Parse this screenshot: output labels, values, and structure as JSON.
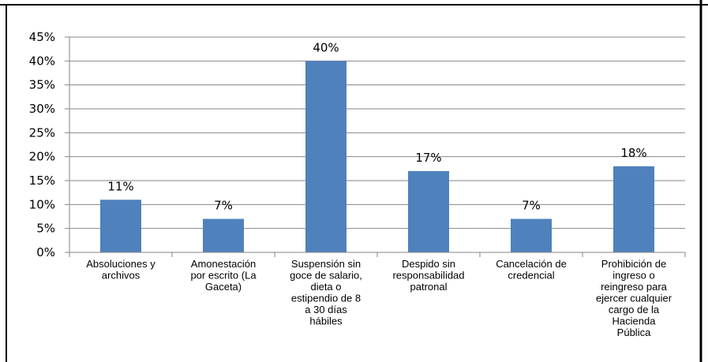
{
  "chart_data": {
    "type": "bar",
    "categories": [
      [
        "Absoluciones y",
        "archivos"
      ],
      [
        "Amonestación",
        "por escrito (La",
        "Gaceta)"
      ],
      [
        "Suspensión sin",
        "goce de salario,",
        "dieta o",
        "estipendio de 8",
        "a 30 días",
        "hábiles"
      ],
      [
        "Despido sin",
        "responsabilidad",
        "patronal"
      ],
      [
        "Cancelación de",
        "credencial"
      ],
      [
        "Prohibición de",
        "ingreso o",
        "reingreso para",
        "ejercer cualquier",
        "cargo de la",
        "Hacienda",
        "Pública"
      ]
    ],
    "values": [
      11,
      7,
      40,
      17,
      7,
      18
    ],
    "data_labels": [
      "11%",
      "7%",
      "40%",
      "17%",
      "7%",
      "18%"
    ],
    "yticks": [
      "0%",
      "5%",
      "10%",
      "15%",
      "20%",
      "25%",
      "30%",
      "35%",
      "40%",
      "45%"
    ],
    "ylim": [
      0,
      45
    ],
    "grid": true,
    "legend": "none",
    "bar_color": "#4F81BD",
    "grid_color": "#868686",
    "title": "",
    "xlabel": "",
    "ylabel": ""
  }
}
